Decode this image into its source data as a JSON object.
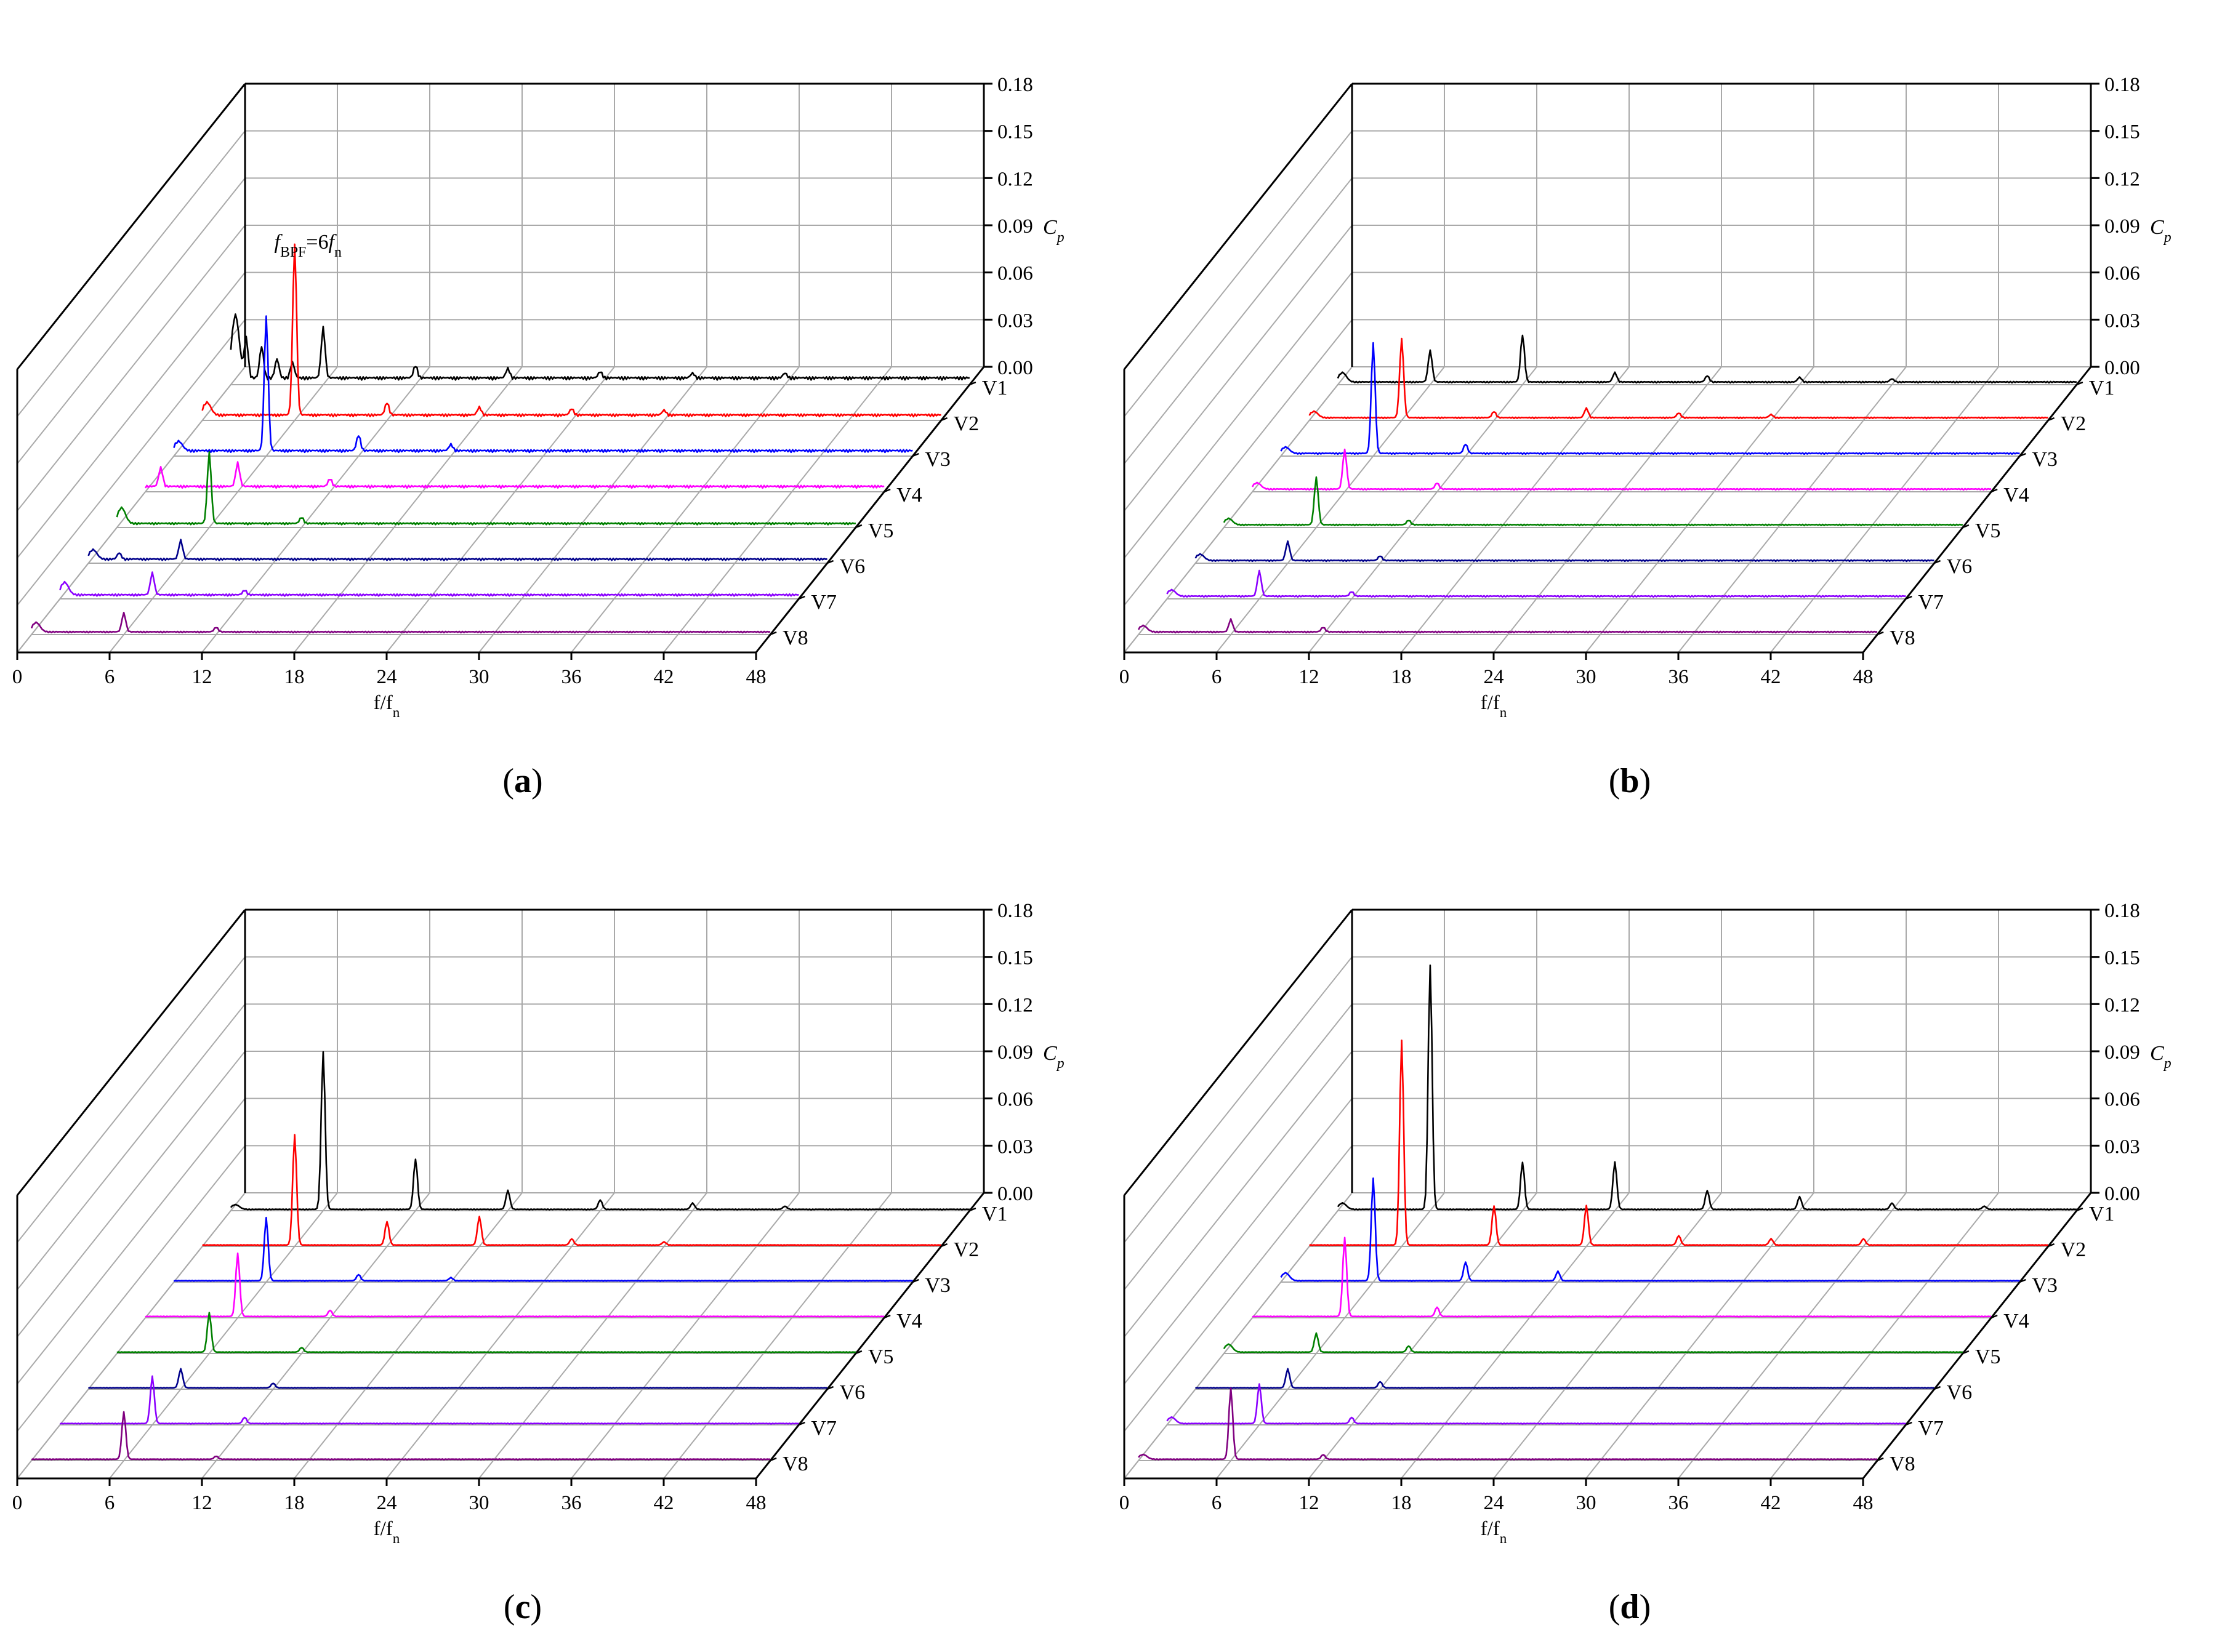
{
  "colors": {
    "V1": "#000000",
    "V2": "#ff0000",
    "V3": "#0000ff",
    "V4": "#ff00ff",
    "V5": "#008000",
    "V6": "#00008b",
    "V7": "#8b00ff",
    "V8": "#800080"
  },
  "chart_data": [
    {
      "type": "line",
      "subtype": "waterfall-3d",
      "caption": "(a)",
      "xlabel": "f/f",
      "xlabel_sub": "n",
      "zlabel": "C",
      "zlabel_sub": "p",
      "xlim": [
        0,
        48
      ],
      "zlim": [
        0,
        0.18
      ],
      "x_ticks": [
        "0",
        "6",
        "12",
        "18",
        "24",
        "30",
        "36",
        "42",
        "48"
      ],
      "z_ticks": [
        "0.00",
        "0.03",
        "0.06",
        "0.09",
        "0.12",
        "0.15",
        "0.18"
      ],
      "annotation": {
        "f1": "f",
        "sub1": "BPF",
        "eq": "=6",
        "f2": "f",
        "sub2": "n"
      },
      "series": [
        {
          "name": "V1",
          "base": 0.005,
          "peaks": [
            [
              0.3,
              0.04
            ],
            [
              1.0,
              0.025
            ],
            [
              2.0,
              0.02
            ],
            [
              3.0,
              0.012
            ],
            [
              4.0,
              0.01
            ],
            [
              6.0,
              0.032
            ],
            [
              12,
              0.008
            ],
            [
              18,
              0.006
            ],
            [
              24,
              0.004
            ],
            [
              30,
              0.003
            ],
            [
              36,
              0.003
            ]
          ]
        },
        {
          "name": "V2",
          "base": 0.004,
          "peaks": [
            [
              0.3,
              0.008
            ],
            [
              6.0,
              0.108
            ],
            [
              12,
              0.008
            ],
            [
              18,
              0.005
            ],
            [
              24,
              0.004
            ],
            [
              30,
              0.003
            ]
          ]
        },
        {
          "name": "V3",
          "base": 0.004,
          "peaks": [
            [
              0.3,
              0.006
            ],
            [
              6.0,
              0.085
            ],
            [
              12,
              0.01
            ],
            [
              18,
              0.004
            ]
          ]
        },
        {
          "name": "V4",
          "base": 0.004,
          "peaks": [
            [
              1.0,
              0.012
            ],
            [
              6.0,
              0.015
            ],
            [
              12,
              0.005
            ]
          ]
        },
        {
          "name": "V5",
          "base": 0.003,
          "peaks": [
            [
              0.3,
              0.01
            ],
            [
              6.0,
              0.045
            ],
            [
              12,
              0.004
            ]
          ]
        },
        {
          "name": "V6",
          "base": 0.003,
          "peaks": [
            [
              0.3,
              0.006
            ],
            [
              2.0,
              0.004
            ],
            [
              6.0,
              0.012
            ]
          ]
        },
        {
          "name": "V7",
          "base": 0.003,
          "peaks": [
            [
              0.3,
              0.008
            ],
            [
              6.0,
              0.014
            ],
            [
              12,
              0.003
            ]
          ]
        },
        {
          "name": "V8",
          "base": 0.002,
          "peaks": [
            [
              0.3,
              0.006
            ],
            [
              6.0,
              0.012
            ],
            [
              12,
              0.003
            ]
          ]
        }
      ]
    },
    {
      "type": "line",
      "subtype": "waterfall-3d",
      "caption": "(b)",
      "xlabel": "f/f",
      "xlabel_sub": "n",
      "zlabel": "C",
      "zlabel_sub": "p",
      "xlim": [
        0,
        48
      ],
      "zlim": [
        0,
        0.18
      ],
      "x_ticks": [
        "0",
        "6",
        "12",
        "18",
        "24",
        "30",
        "36",
        "42",
        "48"
      ],
      "z_ticks": [
        "0.00",
        "0.03",
        "0.06",
        "0.09",
        "0.12",
        "0.15",
        "0.18"
      ],
      "series": [
        {
          "name": "V1",
          "base": 0.002,
          "peaks": [
            [
              0.3,
              0.006
            ],
            [
              6.0,
              0.02
            ],
            [
              12,
              0.03
            ],
            [
              18,
              0.006
            ],
            [
              24,
              0.004
            ],
            [
              30,
              0.003
            ],
            [
              36,
              0.002
            ]
          ]
        },
        {
          "name": "V2",
          "base": 0.002,
          "peaks": [
            [
              0.3,
              0.004
            ],
            [
              6.0,
              0.05
            ],
            [
              12,
              0.004
            ],
            [
              18,
              0.006
            ],
            [
              24,
              0.003
            ],
            [
              30,
              0.002
            ]
          ]
        },
        {
          "name": "V3",
          "base": 0.002,
          "peaks": [
            [
              0.3,
              0.004
            ],
            [
              6.0,
              0.07
            ],
            [
              12,
              0.006
            ]
          ]
        },
        {
          "name": "V4",
          "base": 0.002,
          "peaks": [
            [
              0.3,
              0.004
            ],
            [
              6.0,
              0.025
            ],
            [
              12,
              0.004
            ]
          ]
        },
        {
          "name": "V5",
          "base": 0.002,
          "peaks": [
            [
              0.3,
              0.004
            ],
            [
              6.0,
              0.03
            ],
            [
              12,
              0.003
            ]
          ]
        },
        {
          "name": "V6",
          "base": 0.002,
          "peaks": [
            [
              0.3,
              0.004
            ],
            [
              6.0,
              0.012
            ],
            [
              12,
              0.003
            ]
          ]
        },
        {
          "name": "V7",
          "base": 0.002,
          "peaks": [
            [
              0.3,
              0.004
            ],
            [
              6.0,
              0.016
            ],
            [
              12,
              0.003
            ]
          ]
        },
        {
          "name": "V8",
          "base": 0.002,
          "peaks": [
            [
              0.3,
              0.004
            ],
            [
              6.0,
              0.008
            ],
            [
              12,
              0.003
            ]
          ]
        }
      ]
    },
    {
      "type": "line",
      "subtype": "waterfall-3d",
      "caption": "(c)",
      "xlabel": "f/f",
      "xlabel_sub": "n",
      "zlabel": "C",
      "zlabel_sub": "p",
      "xlim": [
        0,
        48
      ],
      "zlim": [
        0,
        0.18
      ],
      "x_ticks": [
        "0",
        "6",
        "12",
        "18",
        "24",
        "30",
        "36",
        "42",
        "48"
      ],
      "z_ticks": [
        "0.00",
        "0.03",
        "0.06",
        "0.09",
        "0.12",
        "0.15",
        "0.18"
      ],
      "series": [
        {
          "name": "V1",
          "base": 0.001,
          "peaks": [
            [
              0.3,
              0.003
            ],
            [
              6.0,
              0.1
            ],
            [
              12,
              0.032
            ],
            [
              18,
              0.012
            ],
            [
              24,
              0.006
            ],
            [
              30,
              0.004
            ],
            [
              36,
              0.002
            ]
          ]
        },
        {
          "name": "V2",
          "base": 0.001,
          "peaks": [
            [
              6.0,
              0.07
            ],
            [
              12,
              0.015
            ],
            [
              18,
              0.018
            ],
            [
              24,
              0.004
            ],
            [
              30,
              0.002
            ]
          ]
        },
        {
          "name": "V3",
          "base": 0.001,
          "peaks": [
            [
              6.0,
              0.04
            ],
            [
              12,
              0.004
            ],
            [
              18,
              0.002
            ]
          ]
        },
        {
          "name": "V4",
          "base": 0.001,
          "peaks": [
            [
              6.0,
              0.04
            ],
            [
              12,
              0.004
            ]
          ]
        },
        {
          "name": "V5",
          "base": 0.001,
          "peaks": [
            [
              6.0,
              0.025
            ],
            [
              12,
              0.003
            ]
          ]
        },
        {
          "name": "V6",
          "base": 0.001,
          "peaks": [
            [
              6.0,
              0.012
            ],
            [
              12,
              0.003
            ]
          ]
        },
        {
          "name": "V7",
          "base": 0.001,
          "peaks": [
            [
              6.0,
              0.03
            ],
            [
              12,
              0.004
            ]
          ]
        },
        {
          "name": "V8",
          "base": 0.001,
          "peaks": [
            [
              6.0,
              0.03
            ],
            [
              12,
              0.002
            ]
          ]
        }
      ]
    },
    {
      "type": "line",
      "subtype": "waterfall-3d",
      "caption": "(d)",
      "xlabel": "f/f",
      "xlabel_sub": "n",
      "zlabel": "C",
      "zlabel_sub": "p",
      "xlim": [
        0,
        48
      ],
      "zlim": [
        0,
        0.18
      ],
      "x_ticks": [
        "0",
        "6",
        "12",
        "18",
        "24",
        "30",
        "36",
        "42",
        "48"
      ],
      "z_ticks": [
        "0.00",
        "0.03",
        "0.06",
        "0.09",
        "0.12",
        "0.15",
        "0.18"
      ],
      "series": [
        {
          "name": "V1",
          "base": 0.001,
          "peaks": [
            [
              0.3,
              0.004
            ],
            [
              6.0,
              0.155
            ],
            [
              12,
              0.03
            ],
            [
              18,
              0.03
            ],
            [
              24,
              0.012
            ],
            [
              30,
              0.008
            ],
            [
              36,
              0.004
            ],
            [
              42,
              0.002
            ]
          ]
        },
        {
          "name": "V2",
          "base": 0.001,
          "peaks": [
            [
              6.0,
              0.13
            ],
            [
              12,
              0.025
            ],
            [
              18,
              0.025
            ],
            [
              24,
              0.006
            ],
            [
              30,
              0.004
            ],
            [
              36,
              0.004
            ]
          ]
        },
        {
          "name": "V3",
          "base": 0.001,
          "peaks": [
            [
              0.3,
              0.005
            ],
            [
              6.0,
              0.065
            ],
            [
              12,
              0.012
            ],
            [
              18,
              0.006
            ]
          ]
        },
        {
          "name": "V4",
          "base": 0.001,
          "peaks": [
            [
              6.0,
              0.05
            ],
            [
              12,
              0.006
            ]
          ]
        },
        {
          "name": "V5",
          "base": 0.001,
          "peaks": [
            [
              0.3,
              0.005
            ],
            [
              6.0,
              0.012
            ],
            [
              12,
              0.004
            ]
          ]
        },
        {
          "name": "V6",
          "base": 0.001,
          "peaks": [
            [
              6.0,
              0.012
            ],
            [
              12,
              0.004
            ]
          ]
        },
        {
          "name": "V7",
          "base": 0.001,
          "peaks": [
            [
              0.3,
              0.004
            ],
            [
              6.0,
              0.025
            ],
            [
              12,
              0.004
            ]
          ]
        },
        {
          "name": "V8",
          "base": 0.001,
          "peaks": [
            [
              0.3,
              0.003
            ],
            [
              6.0,
              0.045
            ],
            [
              12,
              0.003
            ]
          ]
        }
      ]
    }
  ]
}
